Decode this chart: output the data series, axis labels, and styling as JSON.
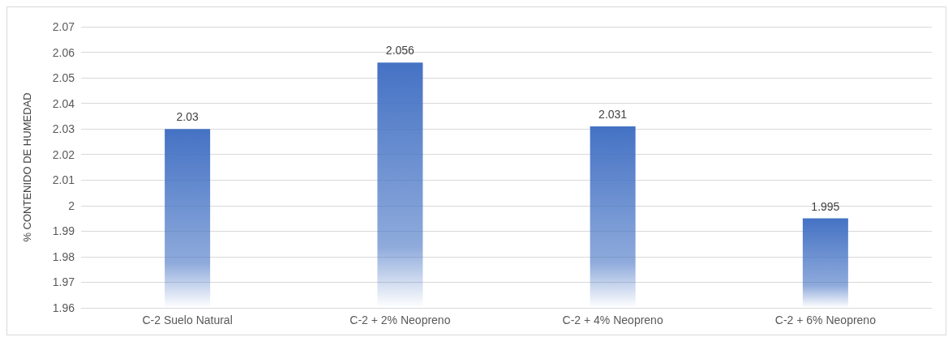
{
  "chart_data": {
    "type": "bar",
    "ylabel": "% CONTENIDO DE HUMEDAD",
    "categories": [
      "C-2 Suelo Natural",
      "C-2 + 2% Neopreno",
      "C-2 + 4% Neopreno",
      "C-2 + 6% Neopreno"
    ],
    "values": [
      2.03,
      2.056,
      2.031,
      1.995
    ],
    "color": "#4472c4",
    "ylim": [
      1.96,
      2.07
    ],
    "yticks": [
      1.96,
      1.97,
      1.98,
      1.99,
      2,
      2.01,
      2.02,
      2.03,
      2.04,
      2.05,
      2.06,
      2.07
    ],
    "grid": "y",
    "data_labels": true
  }
}
